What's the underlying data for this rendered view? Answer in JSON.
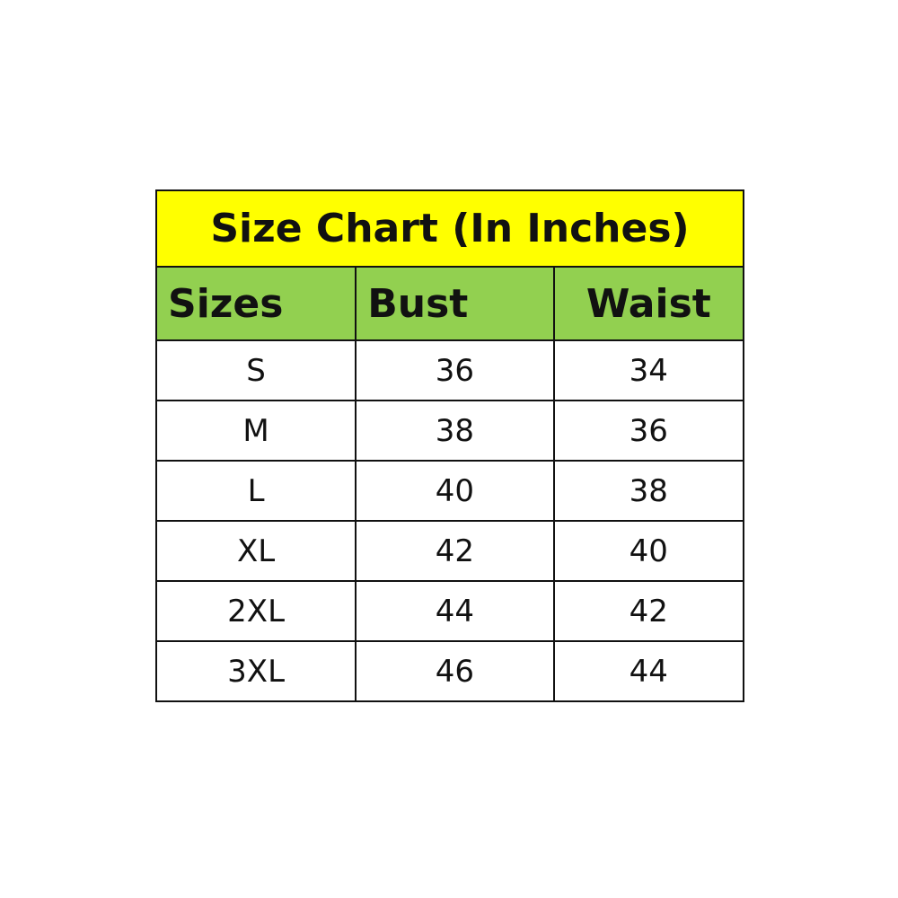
{
  "title": "Size Chart (In Inches)",
  "colors": {
    "title_bg": "#ffff00",
    "header_bg": "#92d050"
  },
  "headers": [
    "Sizes",
    "Bust",
    "Waist"
  ],
  "rows": [
    [
      "S",
      "36",
      "34"
    ],
    [
      "M",
      "38",
      "36"
    ],
    [
      "L",
      "40",
      "38"
    ],
    [
      "XL",
      "42",
      "40"
    ],
    [
      "2XL",
      "44",
      "42"
    ],
    [
      "3XL",
      "46",
      "44"
    ]
  ]
}
